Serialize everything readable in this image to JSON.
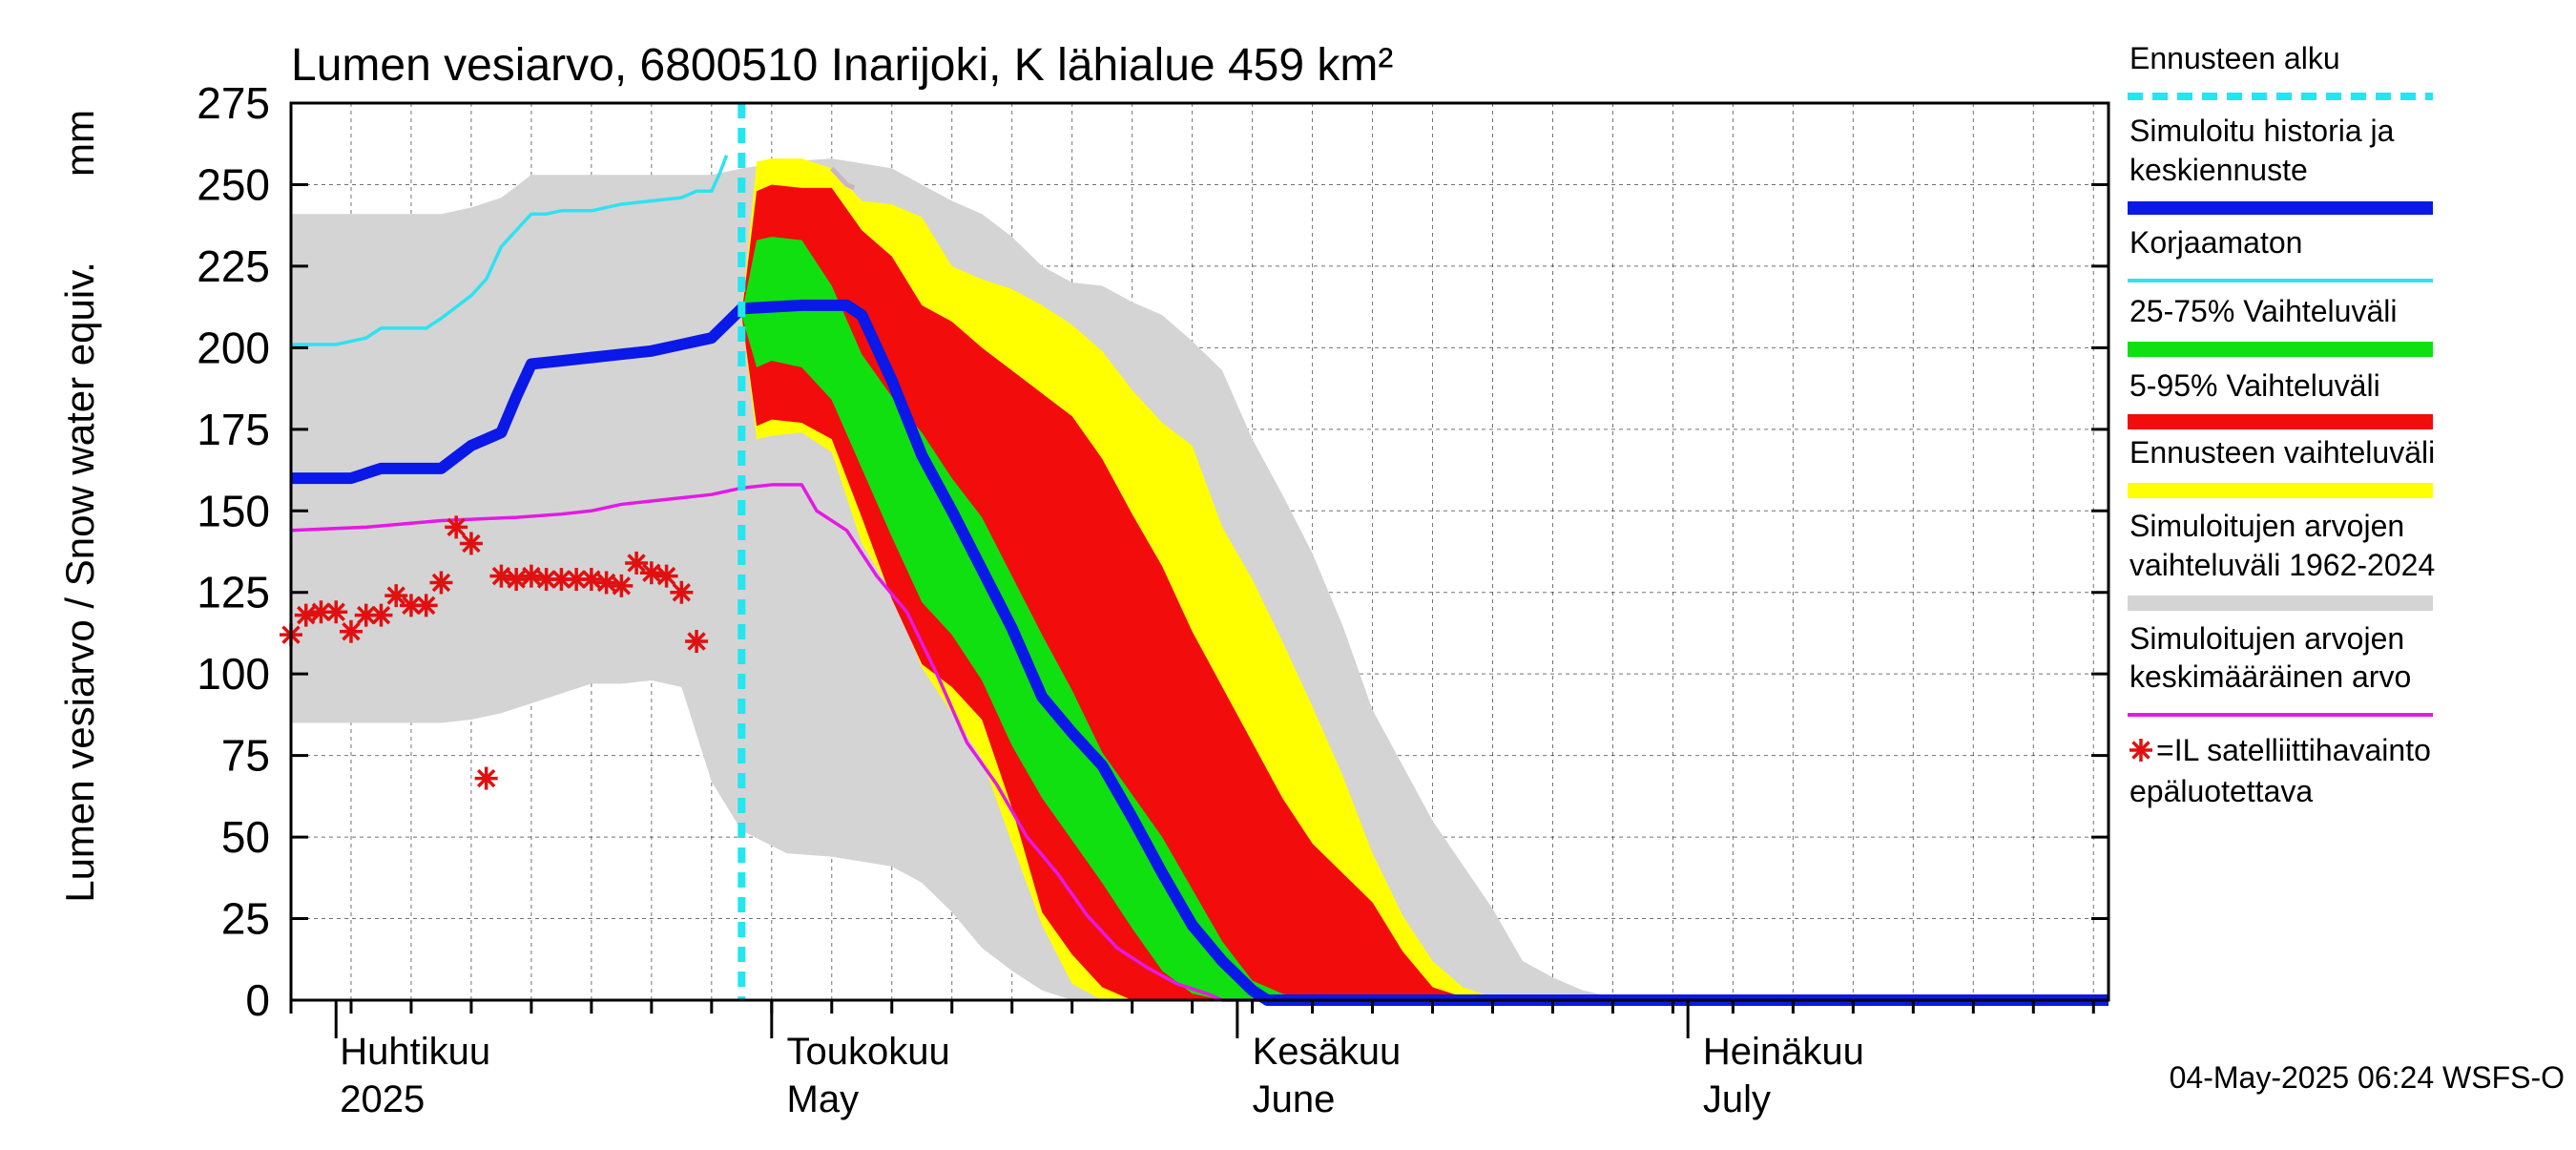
{
  "chart_data": {
    "type": "area",
    "title": "Lumen vesiarvo, 6800510 Inarijoki, K lähialue 459 km²",
    "ylabel_fi": "Lumen vesiarvo / Snow water equiv.",
    "ylabel_unit": "mm",
    "ylim": [
      0,
      275
    ],
    "yticks": [
      "0",
      "25",
      "50",
      "75",
      "100",
      "125",
      "150",
      "175",
      "200",
      "225",
      "250",
      "275"
    ],
    "xlim_days": [
      0,
      121
    ],
    "x_start_date": "2025-03-29",
    "month_labels": [
      {
        "fi": "Huhtikuu",
        "en": "2025",
        "day": 3
      },
      {
        "fi": "Toukokuu",
        "en": "May",
        "day": 33
      },
      {
        "fi": "Kesäkuu",
        "en": "June",
        "day": 64
      },
      {
        "fi": "Heinäkuu",
        "en": "July",
        "day": 94
      }
    ],
    "forecast_start_day": 30,
    "timestamp": "04-May-2025 06:24 WSFS-O",
    "series": {
      "hist_range": {
        "x": [
          0,
          5,
          10,
          12,
          14,
          16,
          20,
          22,
          24,
          26,
          28,
          30,
          33,
          36,
          40,
          42,
          44,
          46,
          48,
          50,
          52,
          54,
          56,
          58,
          60,
          62,
          64,
          66,
          68,
          70,
          72,
          76,
          80,
          82,
          84,
          86,
          88,
          90,
          91,
          92
        ],
        "upper": [
          241,
          241,
          241,
          243,
          246,
          253,
          253,
          253,
          253,
          253,
          253,
          255,
          257,
          258,
          255,
          250,
          245,
          241,
          234,
          225,
          220,
          219,
          214,
          210,
          202,
          193,
          172,
          155,
          137,
          115,
          89,
          55,
          28,
          12,
          7,
          3,
          1,
          0,
          0,
          0
        ],
        "lower": [
          85,
          85,
          85,
          86,
          88,
          91,
          97,
          97,
          98,
          96,
          67,
          52,
          45,
          44,
          41,
          36,
          27,
          16,
          9,
          3,
          0,
          0,
          0,
          0,
          0,
          0,
          0,
          0,
          0,
          0,
          0,
          0,
          0,
          0,
          0,
          0,
          0,
          0,
          0,
          0
        ]
      },
      "forecast_range": {
        "x": [
          30,
          31,
          32,
          34,
          36,
          38,
          40,
          42,
          44,
          46,
          48,
          50,
          52,
          54,
          56,
          58,
          60,
          62,
          64,
          66,
          68,
          70,
          72,
          74,
          76,
          78,
          80,
          82
        ],
        "upper": [
          210,
          257,
          258,
          258,
          255,
          245,
          244,
          240,
          225,
          221,
          218,
          213,
          207,
          199,
          187,
          177,
          170,
          145,
          129,
          110,
          90,
          69,
          45,
          26,
          12,
          4,
          1,
          0
        ],
        "lower": [
          210,
          172,
          173,
          174,
          168,
          140,
          125,
          102,
          88,
          74,
          48,
          23,
          5,
          0,
          0,
          0,
          0,
          0,
          0,
          0,
          0,
          0,
          0,
          0,
          0,
          0,
          0,
          0
        ]
      },
      "p5_95": {
        "x": [
          30,
          31,
          32,
          34,
          36,
          38,
          40,
          42,
          44,
          46,
          48,
          50,
          52,
          54,
          56,
          58,
          60,
          62,
          64,
          66,
          68,
          70,
          72,
          74,
          76,
          78,
          80
        ],
        "upper": [
          210,
          248,
          250,
          249,
          249,
          236,
          228,
          213,
          208,
          200,
          193,
          186,
          179,
          166,
          149,
          133,
          113,
          96,
          79,
          62,
          48,
          39,
          30,
          15,
          4,
          1,
          0
        ],
        "lower": [
          210,
          176,
          178,
          177,
          172,
          148,
          123,
          103,
          96,
          86,
          59,
          27,
          14,
          4,
          0,
          0,
          0,
          0,
          0,
          0,
          0,
          0,
          0,
          0,
          0,
          0,
          0
        ]
      },
      "p25_75": {
        "x": [
          30,
          31,
          32,
          34,
          36,
          38,
          40,
          42,
          44,
          46,
          48,
          50,
          52,
          54,
          56,
          58,
          60,
          62,
          64,
          66,
          68,
          70,
          72
        ],
        "upper": [
          210,
          233,
          234,
          233,
          219,
          198,
          185,
          174,
          160,
          148,
          130,
          112,
          95,
          76,
          63,
          50,
          34,
          18,
          6,
          2,
          0,
          0,
          0
        ],
        "lower": [
          210,
          194,
          196,
          194,
          184,
          163,
          142,
          122,
          112,
          98,
          78,
          62,
          49,
          36,
          22,
          9,
          2,
          0,
          0,
          0,
          0,
          0,
          0
        ]
      },
      "median": {
        "x": [
          0,
          2,
          4,
          6,
          8,
          10,
          12,
          14,
          15,
          16,
          18,
          20,
          22,
          24,
          26,
          27,
          28,
          30,
          34,
          37,
          38,
          40,
          42,
          44,
          46,
          48,
          50,
          52,
          54,
          56,
          58,
          60,
          62,
          64,
          65,
          66,
          68,
          121
        ],
        "y": [
          160,
          160,
          160,
          163,
          163,
          163,
          170,
          174,
          185,
          195,
          196,
          197,
          198,
          199,
          201,
          202,
          203,
          212,
          213,
          213,
          210,
          190,
          167,
          150,
          132,
          114,
          93,
          82,
          72,
          56,
          39,
          23,
          12,
          3,
          0,
          0,
          0,
          0
        ]
      },
      "uncorrected": {
        "x": [
          0,
          3,
          5,
          6,
          9,
          10,
          12,
          13,
          14,
          15,
          16,
          17,
          18,
          20,
          22,
          24,
          26,
          27,
          28,
          28.5,
          29
        ],
        "y": [
          201,
          201,
          203,
          206,
          206,
          209,
          216,
          221,
          231,
          236,
          241,
          241,
          242,
          242,
          244,
          245,
          246,
          248,
          248,
          253,
          259
        ]
      },
      "pink_history": {
        "x": [
          36,
          37,
          37.5
        ],
        "y": [
          255,
          250,
          249
        ]
      },
      "mean": {
        "x": [
          0,
          5,
          10,
          15,
          18,
          20,
          22,
          24,
          26,
          28,
          30,
          32,
          34,
          35,
          37,
          39,
          41,
          43,
          45,
          47,
          49,
          51,
          53,
          55,
          57,
          59,
          61,
          62,
          63,
          64,
          121
        ],
        "y": [
          144,
          145,
          147,
          148,
          149,
          150,
          152,
          153,
          154,
          155,
          157,
          158,
          158,
          150,
          144,
          130,
          119,
          100,
          79,
          66,
          50,
          39,
          26,
          16,
          10,
          5,
          2,
          0,
          0,
          0,
          0
        ]
      },
      "satellite_obs": {
        "x": [
          0,
          1,
          2,
          3,
          4,
          5,
          6,
          7,
          8,
          9,
          10,
          11,
          12,
          13,
          14,
          15,
          16,
          17,
          18,
          19,
          20,
          21,
          22,
          23,
          24,
          25,
          26,
          27,
          28
        ],
        "y": [
          112,
          118,
          119,
          119,
          113,
          118,
          118,
          124,
          121,
          121,
          128,
          145,
          140,
          68,
          130,
          129,
          130,
          129,
          129,
          129,
          129,
          128,
          127,
          134,
          131,
          130,
          125,
          110,
          0
        ]
      }
    },
    "legend": [
      {
        "label_lines": [
          "Ennusteen alku"
        ],
        "kind": "dashed",
        "color": "#22e6f0"
      },
      {
        "label_lines": [
          "Simuloitu historia ja",
          "keskiennuste"
        ],
        "kind": "thick",
        "color": "#0a18e8"
      },
      {
        "label_lines": [
          "Korjaamaton"
        ],
        "kind": "line",
        "color": "#2ee2f2"
      },
      {
        "label_lines": [
          "25-75% Vaihteluväli"
        ],
        "kind": "band",
        "color": "#10e010"
      },
      {
        "label_lines": [
          "5-95% Vaihteluväli"
        ],
        "kind": "band",
        "color": "#f20c0c"
      },
      {
        "label_lines": [
          "Ennusteen vaihteluväli"
        ],
        "kind": "band",
        "color": "#ffff00"
      },
      {
        "label_lines": [
          "Simuloitujen arvojen",
          "vaihteluväli 1962-2024"
        ],
        "kind": "band",
        "color": "#d4d4d4"
      },
      {
        "label_lines": [
          "Simuloitujen arvojen",
          "keskimääräinen arvo"
        ],
        "kind": "line",
        "color": "#e41ae4"
      },
      {
        "label_lines": [
          "=IL satelliittihavainto",
          "epäluotettava"
        ],
        "kind": "star",
        "color": "#e01010"
      }
    ],
    "colors": {
      "hist_range": "#d4d4d4",
      "forecast_range": "#ffff00",
      "p5_95": "#f20c0c",
      "p25_75": "#10e010",
      "median": "#0a18e8",
      "uncorrected": "#2ee2f2",
      "mean": "#e41ae4",
      "forecast_start": "#22e6f0",
      "satellite_obs": "#e01010",
      "pink_history": "#c8b4c8"
    }
  }
}
